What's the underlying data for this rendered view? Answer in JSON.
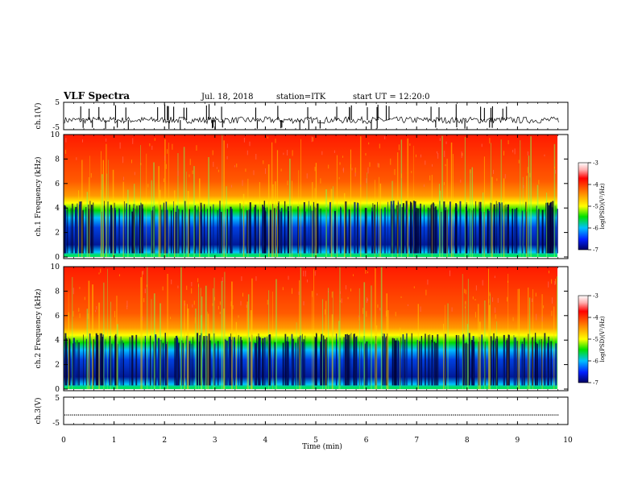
{
  "header": {
    "title": "VLF Spectra",
    "date": "Jul. 18, 2018",
    "station": "station=ITK",
    "start": "start UT = 12:20:0"
  },
  "chart_data": [
    {
      "type": "line",
      "name": "ch1-waveform",
      "ylabel": "ch.1(V)",
      "ylim": [
        -5,
        5
      ],
      "yticks": [
        "5",
        "-5"
      ],
      "baseline": -1.5,
      "xlim": [
        0,
        10
      ],
      "data_end": 9.83
    },
    {
      "type": "heatmap",
      "name": "ch1-spectrogram",
      "ylabel": "ch.1 Frequency (kHz)",
      "ylim": [
        0,
        10
      ],
      "yticks": [
        "0",
        "2",
        "4",
        "6",
        "8",
        "10"
      ],
      "xlim": [
        0,
        10
      ],
      "data_end": 9.83,
      "colorbar": {
        "label": "log(PSD)(V²/Hz)",
        "ticks": [
          "-3",
          "-4",
          "-5",
          "-6",
          "-7"
        ],
        "range": [
          -7,
          -3
        ]
      }
    },
    {
      "type": "heatmap",
      "name": "ch2-spectrogram",
      "ylabel": "ch.2 Frequency (kHz)",
      "ylim": [
        0,
        10
      ],
      "yticks": [
        "0",
        "2",
        "4",
        "6",
        "8",
        "10"
      ],
      "xlim": [
        0,
        10
      ],
      "data_end": 9.83,
      "colorbar": {
        "label": "log(PSD)(V²/Hz)",
        "ticks": [
          "-3",
          "-4",
          "-5",
          "-6",
          "-7"
        ],
        "range": [
          -7,
          -3
        ]
      }
    },
    {
      "type": "line",
      "name": "ch3-waveform",
      "ylabel": "ch.3(V)",
      "ylim": [
        -5,
        5
      ],
      "yticks": [
        "5",
        "-5"
      ],
      "baseline": -1.5,
      "xlim": [
        0,
        10
      ],
      "data_end": 9.83
    }
  ],
  "xaxis": {
    "label": "Time (min)",
    "ticks": [
      "0",
      "1",
      "2",
      "3",
      "4",
      "5",
      "6",
      "7",
      "8",
      "9",
      "10"
    ]
  },
  "colors": {
    "red": "#ff1a00",
    "orange": "#ff8c00",
    "yellow": "#ffff00",
    "green": "#00c800",
    "cyan": "#00bfff",
    "blue": "#0033cc",
    "navy": "#00004d"
  }
}
